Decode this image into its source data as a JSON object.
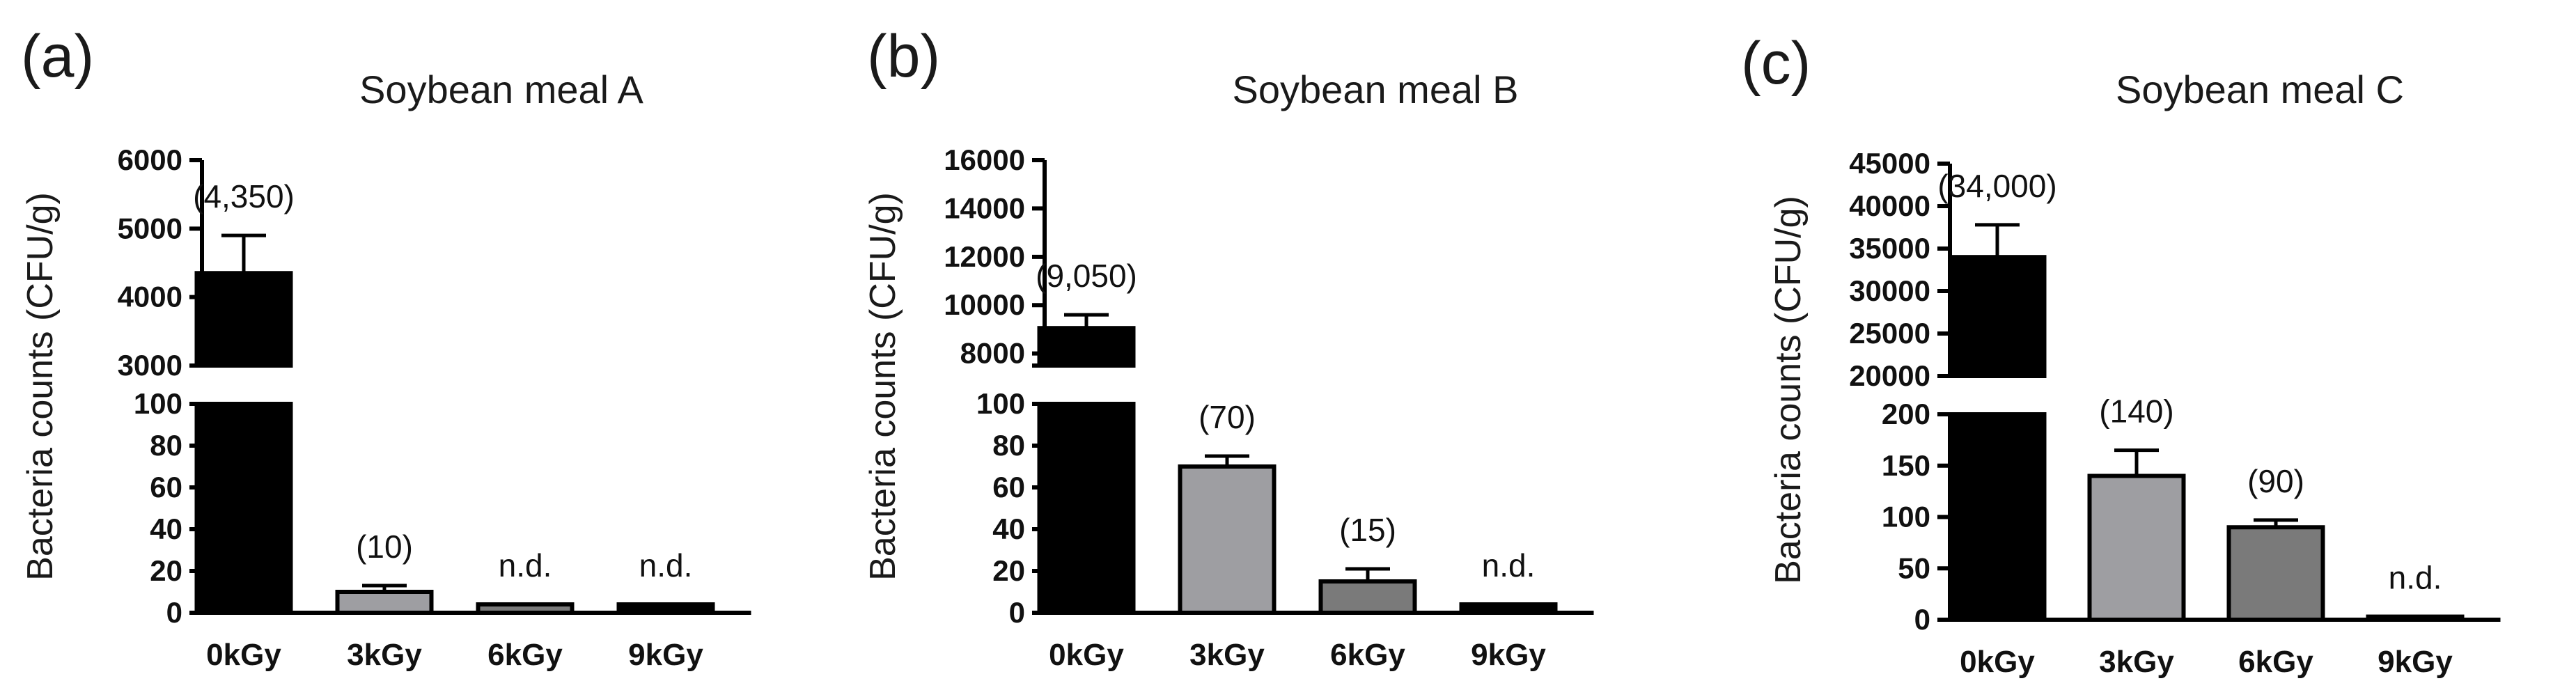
{
  "chart_data": [
    {
      "type": "bar",
      "panel_label": "(a)",
      "title": "Soybean meal  A",
      "ylabel": "Bacteria counts (CFU/g)",
      "categories": [
        "0kGy",
        "3kGy",
        "6kGy",
        "9kGy"
      ],
      "values": [
        4350,
        10,
        4,
        4
      ],
      "errors": [
        550,
        3,
        0,
        0
      ],
      "data_labels": [
        "(4,350)",
        "(10)",
        "n.d.",
        "n.d."
      ],
      "bar_colors": [
        "#000000",
        "#9e9ea2",
        "#7a7a7a",
        "#000000"
      ],
      "axis_break": true,
      "lower_range": [
        0,
        100
      ],
      "lower_ticks": [
        0,
        20,
        40,
        60,
        80,
        100
      ],
      "upper_range": [
        3000,
        6000
      ],
      "upper_ticks": [
        3000,
        4000,
        5000,
        6000
      ]
    },
    {
      "type": "bar",
      "panel_label": "(b)",
      "title": "Soybean meal  B",
      "ylabel": "Bacteria counts (CFU/g)",
      "categories": [
        "0kGy",
        "3kGy",
        "6kGy",
        "9kGy"
      ],
      "values": [
        9050,
        70,
        15,
        4
      ],
      "errors": [
        550,
        5,
        6,
        0
      ],
      "data_labels": [
        "(9,050)",
        "(70)",
        "(15)",
        "n.d."
      ],
      "bar_colors": [
        "#000000",
        "#9e9ea2",
        "#7a7a7a",
        "#000000"
      ],
      "axis_break": true,
      "lower_range": [
        0,
        100
      ],
      "lower_ticks": [
        0,
        20,
        40,
        60,
        80,
        100
      ],
      "upper_range": [
        7500,
        16000
      ],
      "upper_ticks": [
        8000,
        10000,
        12000,
        14000,
        16000
      ]
    },
    {
      "type": "bar",
      "panel_label": "(c)",
      "title": "Soybean meal  C",
      "ylabel": "Bacteria counts (CFU/g)",
      "categories": [
        "0kGy",
        "3kGy",
        "6kGy",
        "9kGy"
      ],
      "values": [
        34000,
        140,
        90,
        3
      ],
      "errors": [
        3800,
        25,
        7,
        0
      ],
      "data_labels": [
        "(34,000)",
        "(140)",
        "(90)",
        "n.d."
      ],
      "bar_colors": [
        "#000000",
        "#9e9ea2",
        "#7a7a7a",
        "#000000"
      ],
      "axis_break": true,
      "lower_range": [
        0,
        200
      ],
      "lower_ticks": [
        0,
        50,
        100,
        150,
        200
      ],
      "upper_range": [
        20000,
        45000
      ],
      "upper_ticks": [
        20000,
        25000,
        30000,
        35000,
        40000,
        45000
      ]
    }
  ]
}
